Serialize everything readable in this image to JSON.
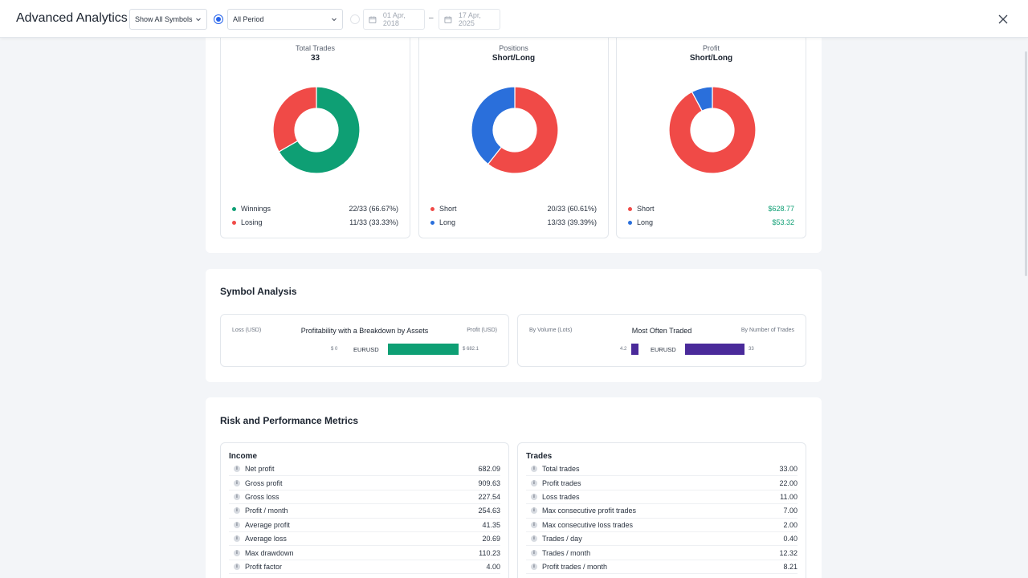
{
  "header": {
    "title": "Advanced Analytics",
    "symbol_select": "Show All Symbols",
    "period_select": "All Period",
    "date_from": "01 Apr, 2018",
    "date_to": "17 Apr, 2025",
    "date_separator": "–"
  },
  "donuts": [
    {
      "title": "Total Trades",
      "subtitle": "33",
      "chart_data": {
        "type": "pie",
        "categories": [
          "Winnings",
          "Losing"
        ],
        "values": [
          22,
          11
        ],
        "colors": [
          "#0e9f74",
          "#f04a47"
        ]
      },
      "legend": [
        {
          "label": "Winnings",
          "value": "22/33 (66.67%)",
          "color": "#0e9f74"
        },
        {
          "label": "Losing",
          "value": "11/33 (33.33%)",
          "color": "#f04a47"
        }
      ]
    },
    {
      "title": "Positions",
      "subtitle": "Short/Long",
      "chart_data": {
        "type": "pie",
        "categories": [
          "Short",
          "Long"
        ],
        "values": [
          20,
          13
        ],
        "colors": [
          "#f04a47",
          "#2a6fdb"
        ]
      },
      "legend": [
        {
          "label": "Short",
          "value": "20/33 (60.61%)",
          "color": "#f04a47"
        },
        {
          "label": "Long",
          "value": "13/33 (39.39%)",
          "color": "#2a6fdb"
        }
      ]
    },
    {
      "title": "Profit",
      "subtitle": "Short/Long",
      "chart_data": {
        "type": "pie",
        "categories": [
          "Short",
          "Long"
        ],
        "values": [
          628.77,
          53.32
        ],
        "colors": [
          "#f04a47",
          "#2a6fdb"
        ]
      },
      "legend": [
        {
          "label": "Short",
          "value": "$628.77",
          "color": "#f04a47"
        },
        {
          "label": "Long",
          "value": "$53.32",
          "color": "#2a6fdb"
        }
      ]
    }
  ],
  "symbol_analysis": {
    "title": "Symbol Analysis",
    "profitability": {
      "title": "Profitability with a Breakdown by Assets",
      "left_label": "Loss (USD)",
      "right_label": "Profit (USD)",
      "symbol": "EURUSD",
      "loss_label": "$ 0",
      "profit_label": "$ 682.1",
      "chart_data": {
        "type": "bar",
        "categories": [
          "EURUSD"
        ],
        "series": [
          {
            "name": "Loss (USD)",
            "values": [
              0
            ]
          },
          {
            "name": "Profit (USD)",
            "values": [
              682.1
            ]
          }
        ]
      },
      "color": "#0e9f74"
    },
    "most_traded": {
      "title": "Most Often Traded",
      "left_label": "By Volume (Lots)",
      "right_label": "By Number of Trades",
      "symbol": "EURUSD",
      "volume_label": "4.2",
      "trades_label": "33",
      "chart_data": {
        "type": "bar",
        "categories": [
          "EURUSD"
        ],
        "series": [
          {
            "name": "By Volume (Lots)",
            "values": [
              4.2
            ]
          },
          {
            "name": "By Number of Trades",
            "values": [
              33
            ]
          }
        ]
      },
      "color": "#4a2a9a"
    }
  },
  "risk": {
    "title": "Risk and Performance Metrics",
    "income": {
      "title": "Income",
      "rows": [
        {
          "label": "Net profit",
          "value": "682.09"
        },
        {
          "label": "Gross profit",
          "value": "909.63"
        },
        {
          "label": "Gross loss",
          "value": "227.54"
        },
        {
          "label": "Profit / month",
          "value": "254.63"
        },
        {
          "label": "Average profit",
          "value": "41.35"
        },
        {
          "label": "Average loss",
          "value": "20.69"
        },
        {
          "label": "Max drawdown",
          "value": "110.23"
        },
        {
          "label": "Profit factor",
          "value": "4.00"
        }
      ]
    },
    "trades": {
      "title": "Trades",
      "rows": [
        {
          "label": "Total trades",
          "value": "33.00"
        },
        {
          "label": "Profit trades",
          "value": "22.00"
        },
        {
          "label": "Loss trades",
          "value": "11.00"
        },
        {
          "label": "Max consecutive profit trades",
          "value": "7.00"
        },
        {
          "label": "Max consecutive loss trades",
          "value": "2.00"
        },
        {
          "label": "Trades / day",
          "value": "0.40"
        },
        {
          "label": "Trades / month",
          "value": "12.32"
        },
        {
          "label": "Profit trades / month",
          "value": "8.21"
        }
      ]
    }
  }
}
